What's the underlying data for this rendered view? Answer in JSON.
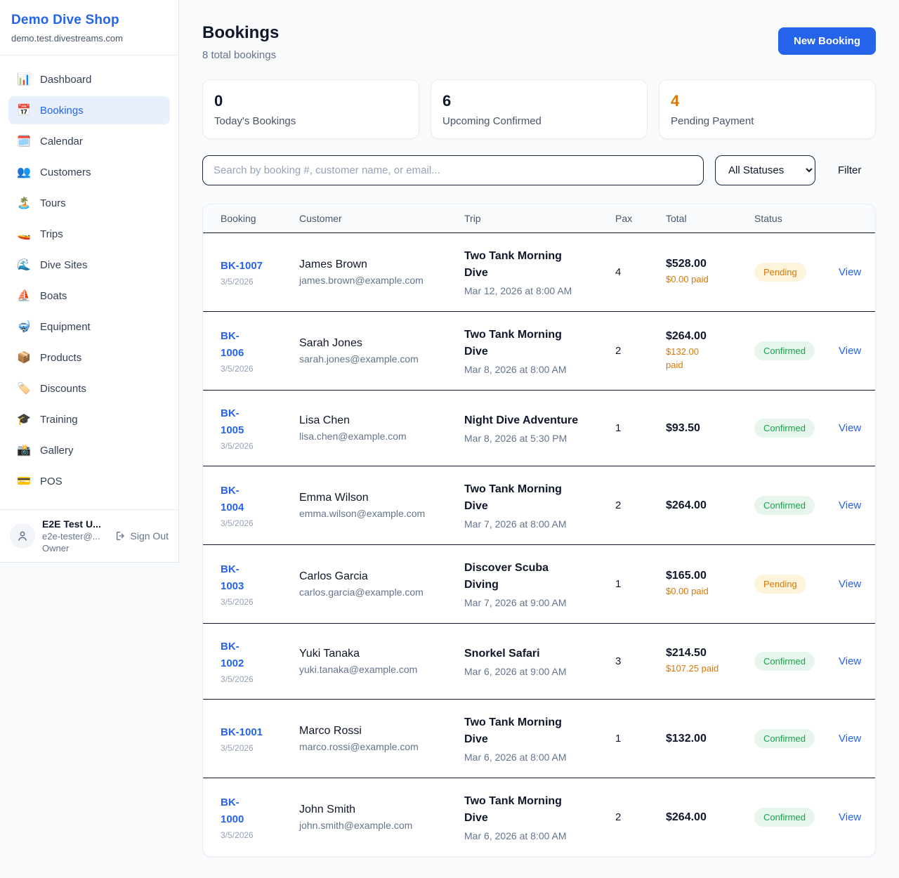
{
  "colors": {
    "accent_blue": "#2563eb",
    "orange": "#d97706",
    "green": "#16a34a",
    "pending_badge_bg": "#fdf4dc",
    "confirmed_badge_bg": "#e7f6ec",
    "page_bg": "#f8fafc"
  },
  "sidebar": {
    "brand": "Demo Dive Shop",
    "domain": "demo.test.divestreams.com",
    "items": [
      {
        "label": "Dashboard",
        "icon": "📊",
        "icon_name": "bar-chart-icon",
        "active": false
      },
      {
        "label": "Bookings",
        "icon": "📅",
        "icon_name": "calendar-icon",
        "active": true
      },
      {
        "label": "Calendar",
        "icon": "🗓️",
        "icon_name": "spiral-calendar-icon",
        "active": false
      },
      {
        "label": "Customers",
        "icon": "👥",
        "icon_name": "people-icon",
        "active": false
      },
      {
        "label": "Tours",
        "icon": "🏝️",
        "icon_name": "island-icon",
        "active": false
      },
      {
        "label": "Trips",
        "icon": "🚤",
        "icon_name": "speedboat-icon",
        "active": false
      },
      {
        "label": "Dive Sites",
        "icon": "🌊",
        "icon_name": "wave-icon",
        "active": false
      },
      {
        "label": "Boats",
        "icon": "⛵",
        "icon_name": "sailboat-icon",
        "active": false
      },
      {
        "label": "Equipment",
        "icon": "🤿",
        "icon_name": "diving-mask-icon",
        "active": false
      },
      {
        "label": "Products",
        "icon": "📦",
        "icon_name": "package-icon",
        "active": false
      },
      {
        "label": "Discounts",
        "icon": "🏷️",
        "icon_name": "tag-icon",
        "active": false
      },
      {
        "label": "Training",
        "icon": "🎓",
        "icon_name": "graduation-cap-icon",
        "active": false
      },
      {
        "label": "Gallery",
        "icon": "📸",
        "icon_name": "camera-icon",
        "active": false
      },
      {
        "label": "POS",
        "icon": "💳",
        "icon_name": "credit-card-icon",
        "active": false
      }
    ],
    "user": {
      "name": "E2E Test U...",
      "email": "e2e-tester@...",
      "role": "Owner",
      "sign_out_label": "Sign Out"
    }
  },
  "header": {
    "title": "Bookings",
    "subtitle": "8 total bookings",
    "new_booking_label": "New Booking"
  },
  "stats": [
    {
      "value": "0",
      "label": "Today's Bookings",
      "highlight": false
    },
    {
      "value": "6",
      "label": "Upcoming Confirmed",
      "highlight": false
    },
    {
      "value": "4",
      "label": "Pending Payment",
      "highlight": true
    }
  ],
  "controls": {
    "search_placeholder": "Search by booking #, customer name, or email...",
    "status_filter_selected": "All Statuses",
    "filter_label": "Filter"
  },
  "table": {
    "columns": [
      "Booking",
      "Customer",
      "Trip",
      "Pax",
      "Total",
      "Status"
    ],
    "action_label": "View",
    "rows": [
      {
        "id": "BK-1007",
        "id_wrap": false,
        "date": "3/5/2026",
        "customer": "James Brown",
        "email": "james.brown@example.com",
        "trip": "Two Tank Morning\nDive",
        "trip_time": "Mar 12, 2026 at 8:00 AM",
        "pax": "4",
        "total": "$528.00",
        "paid": "$0.00 paid",
        "status": "Pending"
      },
      {
        "id": "BK-1006",
        "id_wrap": true,
        "date": "3/5/2026",
        "customer": "Sarah Jones",
        "email": "sarah.jones@example.com",
        "trip": "Two Tank Morning\nDive",
        "trip_time": "Mar 8, 2026 at 8:00 AM",
        "pax": "2",
        "total": "$264.00",
        "paid": "$132.00\npaid",
        "status": "Confirmed"
      },
      {
        "id": "BK-1005",
        "id_wrap": true,
        "date": "3/5/2026",
        "customer": "Lisa Chen",
        "email": "lisa.chen@example.com",
        "trip": "Night Dive Adventure",
        "trip_time": "Mar 8, 2026 at 5:30 PM",
        "pax": "1",
        "total": "$93.50",
        "paid": "",
        "status": "Confirmed"
      },
      {
        "id": "BK-1004",
        "id_wrap": true,
        "date": "3/5/2026",
        "customer": "Emma Wilson",
        "email": "emma.wilson@example.com",
        "trip": "Two Tank Morning\nDive",
        "trip_time": "Mar 7, 2026 at 8:00 AM",
        "pax": "2",
        "total": "$264.00",
        "paid": "",
        "status": "Confirmed"
      },
      {
        "id": "BK-1003",
        "id_wrap": true,
        "date": "3/5/2026",
        "customer": "Carlos Garcia",
        "email": "carlos.garcia@example.com",
        "trip": "Discover Scuba\nDiving",
        "trip_time": "Mar 7, 2026 at 9:00 AM",
        "pax": "1",
        "total": "$165.00",
        "paid": "$0.00 paid",
        "status": "Pending"
      },
      {
        "id": "BK-1002",
        "id_wrap": true,
        "date": "3/5/2026",
        "customer": "Yuki Tanaka",
        "email": "yuki.tanaka@example.com",
        "trip": "Snorkel Safari",
        "trip_time": "Mar 6, 2026 at 9:00 AM",
        "pax": "3",
        "total": "$214.50",
        "paid": "$107.25 paid",
        "status": "Confirmed"
      },
      {
        "id": "BK-1001",
        "id_wrap": false,
        "date": "3/5/2026",
        "customer": "Marco Rossi",
        "email": "marco.rossi@example.com",
        "trip": "Two Tank Morning\nDive",
        "trip_time": "Mar 6, 2026 at 8:00 AM",
        "pax": "1",
        "total": "$132.00",
        "paid": "",
        "status": "Confirmed"
      },
      {
        "id": "BK-1000",
        "id_wrap": true,
        "date": "3/5/2026",
        "customer": "John Smith",
        "email": "john.smith@example.com",
        "trip": "Two Tank Morning\nDive",
        "trip_time": "Mar 6, 2026 at 8:00 AM",
        "pax": "2",
        "total": "$264.00",
        "paid": "",
        "status": "Confirmed"
      }
    ]
  }
}
